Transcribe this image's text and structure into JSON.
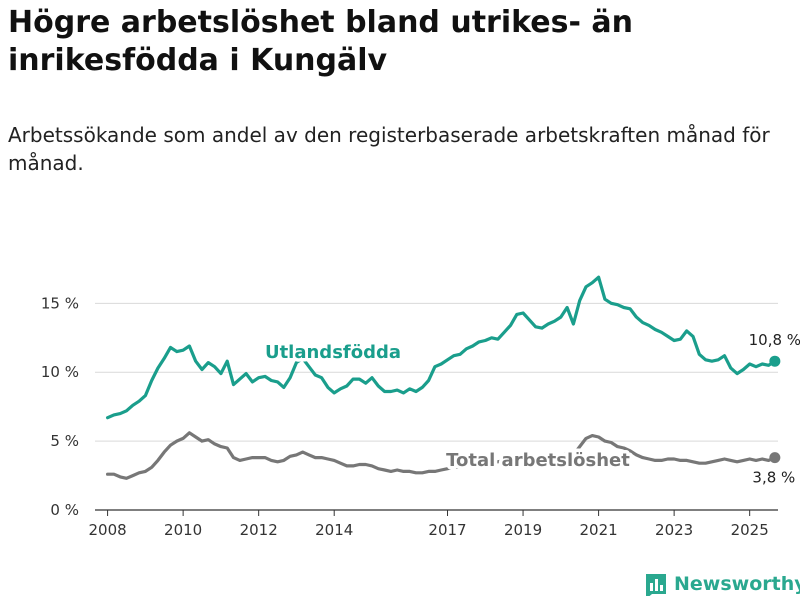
{
  "title": "Högre arbetslöshet bland utrikes- än inrikesfödda i Kungälv",
  "subtitle": "Arbetssökande som andel av den registerbaserade arbetskraften månad för månad.",
  "brand": {
    "name": "Newsworthy",
    "icon": "bar-chart-logo-icon",
    "color": "#2aa88f"
  },
  "chart_data": {
    "type": "line",
    "x_ticks": [
      "2008",
      "2010",
      "2012",
      "2014",
      "2017",
      "2019",
      "2021",
      "2023",
      "2025"
    ],
    "y_ticks": [
      "0 %",
      "5 %",
      "10 %",
      "15 %"
    ],
    "ylim": [
      0,
      18
    ],
    "xlim": [
      "2007-09",
      "2025-10"
    ],
    "grid": true,
    "series": [
      {
        "name": "Utlandsfödda",
        "color": "#1a9e8c",
        "end_label": "10,8 %",
        "points": [
          [
            "2008-01",
            6.7
          ],
          [
            "2008-03",
            6.9
          ],
          [
            "2008-05",
            7.0
          ],
          [
            "2008-07",
            7.2
          ],
          [
            "2008-09",
            7.6
          ],
          [
            "2008-11",
            7.9
          ],
          [
            "2009-01",
            8.3
          ],
          [
            "2009-03",
            9.4
          ],
          [
            "2009-05",
            10.3
          ],
          [
            "2009-07",
            11.0
          ],
          [
            "2009-09",
            11.8
          ],
          [
            "2009-11",
            11.5
          ],
          [
            "2010-01",
            11.6
          ],
          [
            "2010-03",
            11.9
          ],
          [
            "2010-05",
            10.8
          ],
          [
            "2010-07",
            10.2
          ],
          [
            "2010-09",
            10.7
          ],
          [
            "2010-11",
            10.4
          ],
          [
            "2011-01",
            9.9
          ],
          [
            "2011-03",
            10.8
          ],
          [
            "2011-05",
            9.1
          ],
          [
            "2011-07",
            9.5
          ],
          [
            "2011-09",
            9.9
          ],
          [
            "2011-11",
            9.3
          ],
          [
            "2012-01",
            9.6
          ],
          [
            "2012-03",
            9.7
          ],
          [
            "2012-05",
            9.4
          ],
          [
            "2012-07",
            9.3
          ],
          [
            "2012-09",
            8.9
          ],
          [
            "2012-11",
            9.6
          ],
          [
            "2013-01",
            10.7
          ],
          [
            "2013-03",
            11.0
          ],
          [
            "2013-05",
            10.4
          ],
          [
            "2013-07",
            9.8
          ],
          [
            "2013-09",
            9.6
          ],
          [
            "2013-11",
            8.9
          ],
          [
            "2014-01",
            8.5
          ],
          [
            "2014-03",
            8.8
          ],
          [
            "2014-05",
            9.0
          ],
          [
            "2014-07",
            9.5
          ],
          [
            "2014-09",
            9.5
          ],
          [
            "2014-11",
            9.2
          ],
          [
            "2015-01",
            9.6
          ],
          [
            "2015-03",
            9.0
          ],
          [
            "2015-05",
            8.6
          ],
          [
            "2015-07",
            8.6
          ],
          [
            "2015-09",
            8.7
          ],
          [
            "2015-11",
            8.5
          ],
          [
            "2016-01",
            8.8
          ],
          [
            "2016-03",
            8.6
          ],
          [
            "2016-05",
            8.9
          ],
          [
            "2016-07",
            9.4
          ],
          [
            "2016-09",
            10.4
          ],
          [
            "2016-11",
            10.6
          ],
          [
            "2017-01",
            10.9
          ],
          [
            "2017-03",
            11.2
          ],
          [
            "2017-05",
            11.3
          ],
          [
            "2017-07",
            11.7
          ],
          [
            "2017-09",
            11.9
          ],
          [
            "2017-11",
            12.2
          ],
          [
            "2018-01",
            12.3
          ],
          [
            "2018-03",
            12.5
          ],
          [
            "2018-05",
            12.4
          ],
          [
            "2018-07",
            12.9
          ],
          [
            "2018-09",
            13.4
          ],
          [
            "2018-11",
            14.2
          ],
          [
            "2019-01",
            14.3
          ],
          [
            "2019-03",
            13.8
          ],
          [
            "2019-05",
            13.3
          ],
          [
            "2019-07",
            13.2
          ],
          [
            "2019-09",
            13.5
          ],
          [
            "2019-11",
            13.7
          ],
          [
            "2020-01",
            14.0
          ],
          [
            "2020-03",
            14.7
          ],
          [
            "2020-05",
            13.5
          ],
          [
            "2020-07",
            15.2
          ],
          [
            "2020-09",
            16.2
          ],
          [
            "2020-11",
            16.5
          ],
          [
            "2021-01",
            16.9
          ],
          [
            "2021-03",
            15.3
          ],
          [
            "2021-05",
            15.0
          ],
          [
            "2021-07",
            14.9
          ],
          [
            "2021-09",
            14.7
          ],
          [
            "2021-11",
            14.6
          ],
          [
            "2022-01",
            14.0
          ],
          [
            "2022-03",
            13.6
          ],
          [
            "2022-05",
            13.4
          ],
          [
            "2022-07",
            13.1
          ],
          [
            "2022-09",
            12.9
          ],
          [
            "2022-11",
            12.6
          ],
          [
            "2023-01",
            12.3
          ],
          [
            "2023-03",
            12.4
          ],
          [
            "2023-05",
            13.0
          ],
          [
            "2023-07",
            12.6
          ],
          [
            "2023-09",
            11.3
          ],
          [
            "2023-11",
            10.9
          ],
          [
            "2024-01",
            10.8
          ],
          [
            "2024-03",
            10.9
          ],
          [
            "2024-05",
            11.2
          ],
          [
            "2024-07",
            10.3
          ],
          [
            "2024-09",
            9.9
          ],
          [
            "2024-11",
            10.2
          ],
          [
            "2025-01",
            10.6
          ],
          [
            "2025-03",
            10.4
          ],
          [
            "2025-05",
            10.6
          ],
          [
            "2025-07",
            10.5
          ],
          [
            "2025-09",
            10.8
          ]
        ]
      },
      {
        "name": "Total arbetslöshet",
        "color": "#777777",
        "end_label": "3,8 %",
        "points": [
          [
            "2008-01",
            2.6
          ],
          [
            "2008-03",
            2.6
          ],
          [
            "2008-05",
            2.4
          ],
          [
            "2008-07",
            2.3
          ],
          [
            "2008-09",
            2.5
          ],
          [
            "2008-11",
            2.7
          ],
          [
            "2009-01",
            2.8
          ],
          [
            "2009-03",
            3.1
          ],
          [
            "2009-05",
            3.6
          ],
          [
            "2009-07",
            4.2
          ],
          [
            "2009-09",
            4.7
          ],
          [
            "2009-11",
            5.0
          ],
          [
            "2010-01",
            5.2
          ],
          [
            "2010-03",
            5.6
          ],
          [
            "2010-05",
            5.3
          ],
          [
            "2010-07",
            5.0
          ],
          [
            "2010-09",
            5.1
          ],
          [
            "2010-11",
            4.8
          ],
          [
            "2011-01",
            4.6
          ],
          [
            "2011-03",
            4.5
          ],
          [
            "2011-05",
            3.8
          ],
          [
            "2011-07",
            3.6
          ],
          [
            "2011-09",
            3.7
          ],
          [
            "2011-11",
            3.8
          ],
          [
            "2012-01",
            3.8
          ],
          [
            "2012-03",
            3.8
          ],
          [
            "2012-05",
            3.6
          ],
          [
            "2012-07",
            3.5
          ],
          [
            "2012-09",
            3.6
          ],
          [
            "2012-11",
            3.9
          ],
          [
            "2013-01",
            4.0
          ],
          [
            "2013-03",
            4.2
          ],
          [
            "2013-05",
            4.0
          ],
          [
            "2013-07",
            3.8
          ],
          [
            "2013-09",
            3.8
          ],
          [
            "2013-11",
            3.7
          ],
          [
            "2014-01",
            3.6
          ],
          [
            "2014-03",
            3.4
          ],
          [
            "2014-05",
            3.2
          ],
          [
            "2014-07",
            3.2
          ],
          [
            "2014-09",
            3.3
          ],
          [
            "2014-11",
            3.3
          ],
          [
            "2015-01",
            3.2
          ],
          [
            "2015-03",
            3.0
          ],
          [
            "2015-05",
            2.9
          ],
          [
            "2015-07",
            2.8
          ],
          [
            "2015-09",
            2.9
          ],
          [
            "2015-11",
            2.8
          ],
          [
            "2016-01",
            2.8
          ],
          [
            "2016-03",
            2.7
          ],
          [
            "2016-05",
            2.7
          ],
          [
            "2016-07",
            2.8
          ],
          [
            "2016-09",
            2.8
          ],
          [
            "2016-11",
            2.9
          ],
          [
            "2017-01",
            3.0
          ],
          [
            "2017-03",
            3.1
          ],
          [
            "2017-05",
            3.1
          ],
          [
            "2017-07",
            3.2
          ],
          [
            "2017-09",
            3.3
          ],
          [
            "2017-11",
            3.4
          ],
          [
            "2018-01",
            3.4
          ],
          [
            "2018-03",
            3.5
          ],
          [
            "2018-05",
            3.5
          ],
          [
            "2018-07",
            3.6
          ],
          [
            "2018-09",
            3.7
          ],
          [
            "2018-11",
            3.8
          ],
          [
            "2019-01",
            3.8
          ],
          [
            "2019-03",
            3.8
          ],
          [
            "2019-05",
            3.7
          ],
          [
            "2019-07",
            3.8
          ],
          [
            "2019-09",
            3.8
          ],
          [
            "2019-11",
            3.9
          ],
          [
            "2020-01",
            3.9
          ],
          [
            "2020-03",
            4.1
          ],
          [
            "2020-05",
            4.0
          ],
          [
            "2020-07",
            4.6
          ],
          [
            "2020-09",
            5.2
          ],
          [
            "2020-11",
            5.4
          ],
          [
            "2021-01",
            5.3
          ],
          [
            "2021-03",
            5.0
          ],
          [
            "2021-05",
            4.9
          ],
          [
            "2021-07",
            4.6
          ],
          [
            "2021-09",
            4.5
          ],
          [
            "2021-11",
            4.3
          ],
          [
            "2022-01",
            4.0
          ],
          [
            "2022-03",
            3.8
          ],
          [
            "2022-05",
            3.7
          ],
          [
            "2022-07",
            3.6
          ],
          [
            "2022-09",
            3.6
          ],
          [
            "2022-11",
            3.7
          ],
          [
            "2023-01",
            3.7
          ],
          [
            "2023-03",
            3.6
          ],
          [
            "2023-05",
            3.6
          ],
          [
            "2023-07",
            3.5
          ],
          [
            "2023-09",
            3.4
          ],
          [
            "2023-11",
            3.4
          ],
          [
            "2024-01",
            3.5
          ],
          [
            "2024-03",
            3.6
          ],
          [
            "2024-05",
            3.7
          ],
          [
            "2024-07",
            3.6
          ],
          [
            "2024-09",
            3.5
          ],
          [
            "2024-11",
            3.6
          ],
          [
            "2025-01",
            3.7
          ],
          [
            "2025-03",
            3.6
          ],
          [
            "2025-05",
            3.7
          ],
          [
            "2025-07",
            3.6
          ],
          [
            "2025-09",
            3.8
          ]
        ]
      }
    ]
  }
}
